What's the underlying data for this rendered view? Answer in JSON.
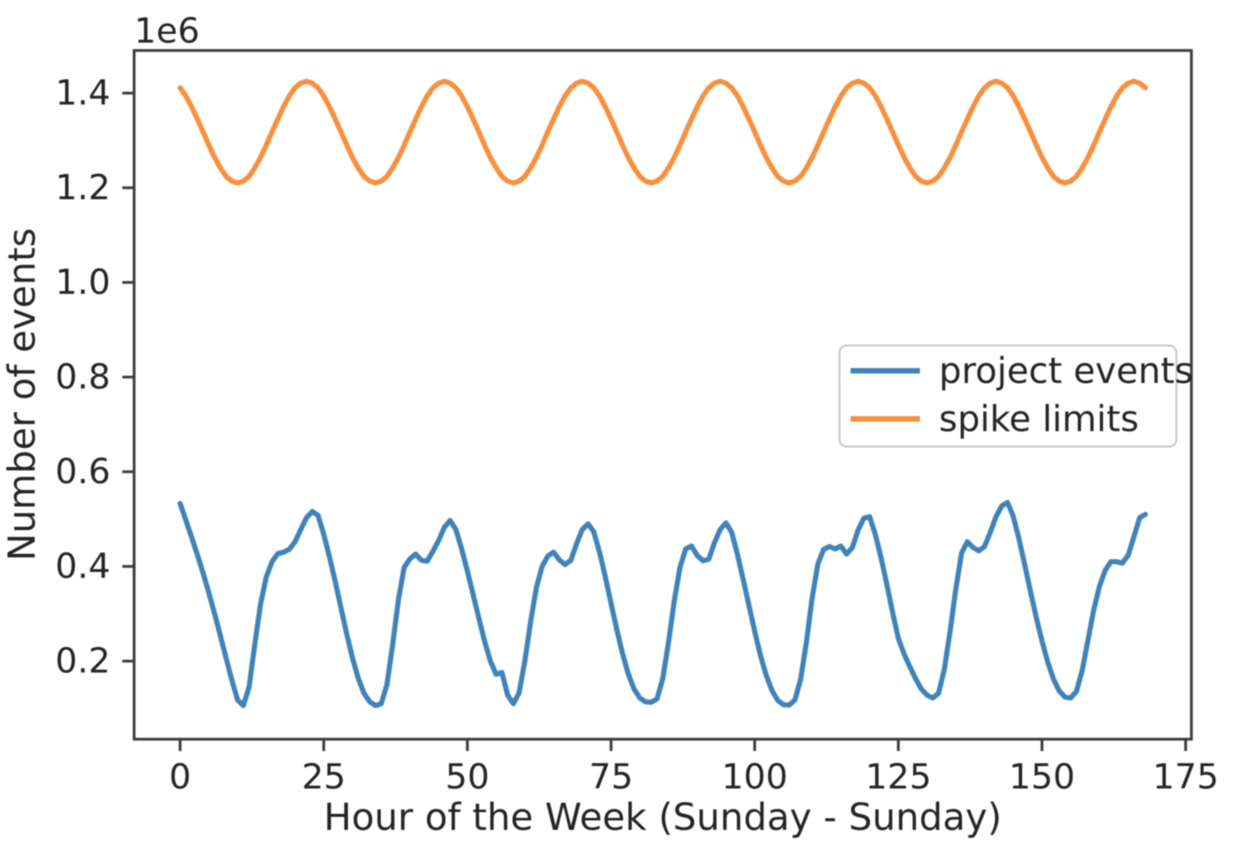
{
  "figure": {
    "y_offset_label": "1e6",
    "background": "#ffffff",
    "axis_color": "#3c3c3c",
    "text_color": "#252525",
    "legend_border_color": "#c9c9c9"
  },
  "chart_data": {
    "type": "line",
    "title": "",
    "xlabel": "Hour of the Week (Sunday - Sunday)",
    "ylabel": "Number of events",
    "y_unit_multiplier": "1e6",
    "grid": false,
    "legend_position": "center right",
    "xlim": [
      -8,
      176
    ],
    "ylim_e6": [
      0.035,
      1.49
    ],
    "x_ticks": [
      0,
      25,
      50,
      75,
      100,
      125,
      150,
      175
    ],
    "x_tick_labels": [
      "0",
      "25",
      "50",
      "75",
      "100",
      "125",
      "150",
      "175"
    ],
    "y_ticks_e6": [
      0.2,
      0.4,
      0.6,
      0.8,
      1.0,
      1.2,
      1.4
    ],
    "y_tick_labels": [
      "0.2",
      "0.4",
      "0.6",
      "0.8",
      "1.0",
      "1.2",
      "1.4"
    ],
    "x_hours": {
      "start": 0,
      "end": 168,
      "step": 1
    },
    "series": [
      {
        "name": "project events",
        "color": "#4083b8",
        "values_e6": [
          0.533,
          0.498,
          0.462,
          0.425,
          0.386,
          0.344,
          0.3,
          0.254,
          0.207,
          0.16,
          0.118,
          0.106,
          0.145,
          0.235,
          0.32,
          0.378,
          0.41,
          0.427,
          0.43,
          0.436,
          0.452,
          0.478,
          0.503,
          0.516,
          0.508,
          0.468,
          0.42,
          0.368,
          0.312,
          0.257,
          0.207,
          0.164,
          0.132,
          0.114,
          0.106,
          0.11,
          0.15,
          0.235,
          0.33,
          0.398,
          0.416,
          0.426,
          0.413,
          0.411,
          0.432,
          0.455,
          0.483,
          0.497,
          0.478,
          0.437,
          0.39,
          0.34,
          0.29,
          0.242,
          0.2,
          0.172,
          0.176,
          0.128,
          0.11,
          0.133,
          0.2,
          0.283,
          0.355,
          0.4,
          0.422,
          0.43,
          0.414,
          0.404,
          0.413,
          0.448,
          0.478,
          0.49,
          0.473,
          0.43,
          0.378,
          0.322,
          0.267,
          0.216,
          0.173,
          0.141,
          0.122,
          0.114,
          0.113,
          0.12,
          0.163,
          0.24,
          0.327,
          0.398,
          0.437,
          0.443,
          0.423,
          0.412,
          0.415,
          0.45,
          0.478,
          0.492,
          0.472,
          0.425,
          0.372,
          0.318,
          0.263,
          0.212,
          0.17,
          0.138,
          0.117,
          0.108,
          0.107,
          0.118,
          0.162,
          0.24,
          0.333,
          0.405,
          0.436,
          0.442,
          0.437,
          0.443,
          0.426,
          0.44,
          0.477,
          0.502,
          0.505,
          0.467,
          0.418,
          0.362,
          0.303,
          0.248,
          0.215,
          0.188,
          0.163,
          0.141,
          0.128,
          0.122,
          0.132,
          0.182,
          0.262,
          0.352,
          0.428,
          0.452,
          0.44,
          0.433,
          0.442,
          0.472,
          0.505,
          0.528,
          0.535,
          0.506,
          0.458,
          0.403,
          0.347,
          0.292,
          0.242,
          0.198,
          0.162,
          0.137,
          0.124,
          0.122,
          0.136,
          0.18,
          0.244,
          0.308,
          0.358,
          0.392,
          0.41,
          0.41,
          0.407,
          0.424,
          0.463,
          0.503,
          0.51
        ]
      },
      {
        "name": "spike limits",
        "color": "#f8903e",
        "values_e6": [
          1.411,
          1.394,
          1.371,
          1.345,
          1.318,
          1.29,
          1.264,
          1.242,
          1.224,
          1.214,
          1.21,
          1.214,
          1.224,
          1.242,
          1.264,
          1.29,
          1.318,
          1.345,
          1.371,
          1.394,
          1.411,
          1.421,
          1.425,
          1.421,
          1.411,
          1.394,
          1.371,
          1.345,
          1.318,
          1.29,
          1.264,
          1.242,
          1.224,
          1.214,
          1.21,
          1.214,
          1.224,
          1.242,
          1.264,
          1.29,
          1.318,
          1.345,
          1.371,
          1.394,
          1.411,
          1.421,
          1.425,
          1.421,
          1.411,
          1.394,
          1.371,
          1.345,
          1.318,
          1.29,
          1.264,
          1.242,
          1.224,
          1.214,
          1.21,
          1.214,
          1.224,
          1.242,
          1.264,
          1.29,
          1.318,
          1.345,
          1.371,
          1.394,
          1.411,
          1.421,
          1.425,
          1.421,
          1.411,
          1.394,
          1.371,
          1.345,
          1.318,
          1.29,
          1.264,
          1.242,
          1.224,
          1.214,
          1.21,
          1.214,
          1.224,
          1.242,
          1.264,
          1.29,
          1.318,
          1.345,
          1.371,
          1.394,
          1.411,
          1.421,
          1.425,
          1.421,
          1.411,
          1.394,
          1.371,
          1.345,
          1.318,
          1.29,
          1.264,
          1.242,
          1.224,
          1.214,
          1.21,
          1.214,
          1.224,
          1.242,
          1.264,
          1.29,
          1.318,
          1.345,
          1.371,
          1.394,
          1.411,
          1.421,
          1.425,
          1.421,
          1.411,
          1.394,
          1.371,
          1.345,
          1.318,
          1.29,
          1.264,
          1.242,
          1.224,
          1.214,
          1.21,
          1.214,
          1.224,
          1.242,
          1.264,
          1.29,
          1.318,
          1.345,
          1.371,
          1.394,
          1.411,
          1.421,
          1.425,
          1.421,
          1.411,
          1.394,
          1.371,
          1.345,
          1.318,
          1.29,
          1.264,
          1.242,
          1.224,
          1.214,
          1.21,
          1.214,
          1.224,
          1.242,
          1.264,
          1.29,
          1.318,
          1.345,
          1.371,
          1.394,
          1.411,
          1.421,
          1.425,
          1.421,
          1.411
        ]
      }
    ]
  }
}
